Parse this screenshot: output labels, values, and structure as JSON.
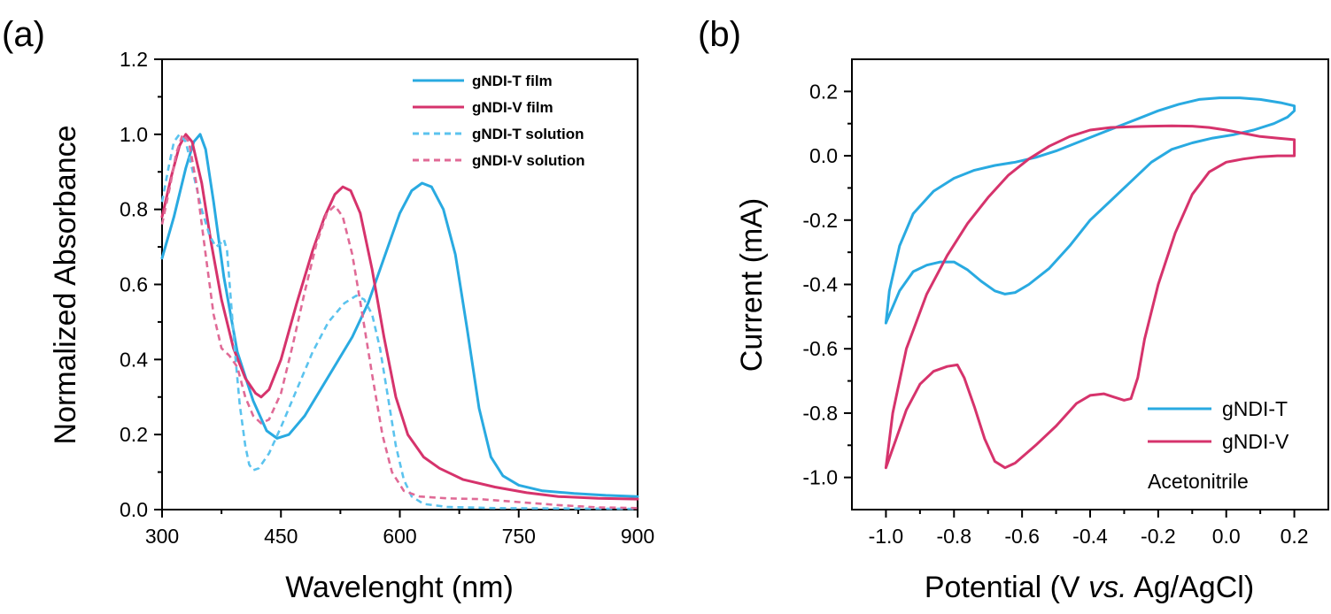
{
  "colors": {
    "blue": "#29aae1",
    "pink": "#d6336c",
    "blue_dashed": "#5bc3ee",
    "pink_dashed": "#e06a96"
  },
  "chart_data": [
    {
      "panel": "(a)",
      "type": "line",
      "xlabel": "Wavelenght (nm)",
      "ylabel": "Normalized Absorbance",
      "xlim": [
        300,
        900
      ],
      "ylim": [
        0,
        1.2
      ],
      "xticks": [
        300,
        450,
        600,
        750,
        900
      ],
      "yticks": [
        0.0,
        0.2,
        0.4,
        0.6,
        0.8,
        1.0,
        1.2
      ],
      "ytick_labels": [
        "0.0",
        "0.2",
        "0.4",
        "0.6",
        "0.8",
        "1.0",
        "1.2"
      ],
      "legend_position": "top-right",
      "series": [
        {
          "name": "gNDI-T film",
          "color": "#29aae1",
          "style": "solid",
          "points": [
            [
              300,
              0.67
            ],
            [
              315,
              0.78
            ],
            [
              330,
              0.91
            ],
            [
              340,
              0.98
            ],
            [
              348,
              1.0
            ],
            [
              355,
              0.96
            ],
            [
              365,
              0.82
            ],
            [
              378,
              0.62
            ],
            [
              395,
              0.42
            ],
            [
              415,
              0.29
            ],
            [
              432,
              0.21
            ],
            [
              445,
              0.19
            ],
            [
              460,
              0.2
            ],
            [
              480,
              0.25
            ],
            [
              500,
              0.32
            ],
            [
              520,
              0.39
            ],
            [
              540,
              0.46
            ],
            [
              560,
              0.55
            ],
            [
              580,
              0.67
            ],
            [
              600,
              0.79
            ],
            [
              615,
              0.85
            ],
            [
              628,
              0.87
            ],
            [
              640,
              0.86
            ],
            [
              655,
              0.8
            ],
            [
              670,
              0.68
            ],
            [
              685,
              0.48
            ],
            [
              700,
              0.27
            ],
            [
              715,
              0.14
            ],
            [
              730,
              0.09
            ],
            [
              750,
              0.065
            ],
            [
              780,
              0.05
            ],
            [
              820,
              0.043
            ],
            [
              860,
              0.038
            ],
            [
              900,
              0.035
            ]
          ]
        },
        {
          "name": "gNDI-V film",
          "color": "#d6336c",
          "style": "solid",
          "points": [
            [
              300,
              0.78
            ],
            [
              312,
              0.89
            ],
            [
              322,
              0.97
            ],
            [
              330,
              1.0
            ],
            [
              338,
              0.98
            ],
            [
              350,
              0.87
            ],
            [
              362,
              0.71
            ],
            [
              375,
              0.56
            ],
            [
              390,
              0.43
            ],
            [
              405,
              0.35
            ],
            [
              418,
              0.31
            ],
            [
              425,
              0.3
            ],
            [
              435,
              0.32
            ],
            [
              450,
              0.4
            ],
            [
              470,
              0.55
            ],
            [
              490,
              0.69
            ],
            [
              505,
              0.78
            ],
            [
              518,
              0.84
            ],
            [
              528,
              0.86
            ],
            [
              538,
              0.85
            ],
            [
              550,
              0.79
            ],
            [
              565,
              0.64
            ],
            [
              580,
              0.46
            ],
            [
              595,
              0.3
            ],
            [
              610,
              0.2
            ],
            [
              630,
              0.14
            ],
            [
              650,
              0.11
            ],
            [
              680,
              0.08
            ],
            [
              720,
              0.06
            ],
            [
              760,
              0.045
            ],
            [
              800,
              0.035
            ],
            [
              850,
              0.03
            ],
            [
              900,
              0.028
            ]
          ]
        },
        {
          "name": "gNDI-T solution",
          "color": "#5bc3ee",
          "style": "dashed",
          "points": [
            [
              300,
              0.82
            ],
            [
              308,
              0.91
            ],
            [
              315,
              0.98
            ],
            [
              322,
              1.0
            ],
            [
              330,
              0.98
            ],
            [
              340,
              0.89
            ],
            [
              350,
              0.8
            ],
            [
              360,
              0.73
            ],
            [
              368,
              0.7
            ],
            [
              374,
              0.71
            ],
            [
              378,
              0.72
            ],
            [
              382,
              0.69
            ],
            [
              386,
              0.58
            ],
            [
              392,
              0.42
            ],
            [
              398,
              0.28
            ],
            [
              405,
              0.17
            ],
            [
              410,
              0.12
            ],
            [
              415,
              0.105
            ],
            [
              422,
              0.11
            ],
            [
              435,
              0.15
            ],
            [
              450,
              0.22
            ],
            [
              470,
              0.32
            ],
            [
              490,
              0.42
            ],
            [
              510,
              0.5
            ],
            [
              530,
              0.55
            ],
            [
              545,
              0.57
            ],
            [
              555,
              0.56
            ],
            [
              565,
              0.52
            ],
            [
              575,
              0.43
            ],
            [
              585,
              0.3
            ],
            [
              595,
              0.17
            ],
            [
              605,
              0.08
            ],
            [
              615,
              0.035
            ],
            [
              630,
              0.015
            ],
            [
              660,
              0.007
            ],
            [
              720,
              0.004
            ],
            [
              900,
              0.002
            ]
          ]
        },
        {
          "name": "gNDI-V solution",
          "color": "#e06a96",
          "style": "dashed",
          "points": [
            [
              300,
              0.76
            ],
            [
              310,
              0.86
            ],
            [
              318,
              0.95
            ],
            [
              326,
              1.0
            ],
            [
              334,
              0.98
            ],
            [
              344,
              0.86
            ],
            [
              355,
              0.68
            ],
            [
              365,
              0.52
            ],
            [
              375,
              0.43
            ],
            [
              385,
              0.41
            ],
            [
              395,
              0.38
            ],
            [
              405,
              0.3
            ],
            [
              415,
              0.25
            ],
            [
              425,
              0.23
            ],
            [
              435,
              0.24
            ],
            [
              450,
              0.31
            ],
            [
              465,
              0.44
            ],
            [
              480,
              0.58
            ],
            [
              495,
              0.71
            ],
            [
              508,
              0.79
            ],
            [
              518,
              0.81
            ],
            [
              528,
              0.78
            ],
            [
              540,
              0.68
            ],
            [
              552,
              0.53
            ],
            [
              565,
              0.36
            ],
            [
              578,
              0.2
            ],
            [
              590,
              0.1
            ],
            [
              605,
              0.05
            ],
            [
              625,
              0.035
            ],
            [
              660,
              0.03
            ],
            [
              700,
              0.028
            ],
            [
              750,
              0.02
            ],
            [
              800,
              0.012
            ],
            [
              850,
              0.006
            ],
            [
              900,
              0.004
            ]
          ]
        }
      ]
    },
    {
      "panel": "(b)",
      "type": "line",
      "xlabel_parts": [
        "Potential (V ",
        "vs.",
        " Ag/AgCl)"
      ],
      "ylabel": "Current (mA)",
      "xlim": [
        -1.1,
        0.3
      ],
      "ylim": [
        -1.1,
        0.3
      ],
      "xticks": [
        -1.0,
        -0.8,
        -0.6,
        -0.4,
        -0.2,
        0.0,
        0.2
      ],
      "xtick_labels": [
        "-1.0",
        "-0.8",
        "-0.6",
        "-0.4",
        "-0.2",
        "0.0",
        "0.2"
      ],
      "yticks": [
        -1.0,
        -0.8,
        -0.6,
        -0.4,
        -0.2,
        0.0,
        0.2
      ],
      "ytick_labels": [
        "-1.0",
        "-0.8",
        "-0.6",
        "-0.4",
        "-0.2",
        "0.0",
        "0.2"
      ],
      "legend_position": "bottom-right",
      "annotation": "Acetonitrile",
      "series": [
        {
          "name": "gNDI-T",
          "color": "#29aae1",
          "style": "solid",
          "points": [
            [
              -1.0,
              -0.52
            ],
            [
              -0.96,
              -0.42
            ],
            [
              -0.92,
              -0.36
            ],
            [
              -0.88,
              -0.34
            ],
            [
              -0.84,
              -0.33
            ],
            [
              -0.8,
              -0.33
            ],
            [
              -0.76,
              -0.355
            ],
            [
              -0.72,
              -0.39
            ],
            [
              -0.68,
              -0.42
            ],
            [
              -0.65,
              -0.43
            ],
            [
              -0.62,
              -0.425
            ],
            [
              -0.58,
              -0.4
            ],
            [
              -0.52,
              -0.35
            ],
            [
              -0.46,
              -0.28
            ],
            [
              -0.4,
              -0.2
            ],
            [
              -0.34,
              -0.14
            ],
            [
              -0.28,
              -0.08
            ],
            [
              -0.22,
              -0.02
            ],
            [
              -0.16,
              0.02
            ],
            [
              -0.1,
              0.04
            ],
            [
              -0.04,
              0.055
            ],
            [
              0.02,
              0.065
            ],
            [
              0.08,
              0.08
            ],
            [
              0.14,
              0.1
            ],
            [
              0.18,
              0.12
            ],
            [
              0.2,
              0.14
            ],
            [
              0.2,
              0.155
            ],
            [
              0.16,
              0.165
            ],
            [
              0.1,
              0.175
            ],
            [
              0.04,
              0.18
            ],
            [
              -0.02,
              0.18
            ],
            [
              -0.08,
              0.175
            ],
            [
              -0.14,
              0.16
            ],
            [
              -0.2,
              0.14
            ],
            [
              -0.26,
              0.115
            ],
            [
              -0.32,
              0.09
            ],
            [
              -0.38,
              0.065
            ],
            [
              -0.44,
              0.04
            ],
            [
              -0.5,
              0.015
            ],
            [
              -0.56,
              -0.005
            ],
            [
              -0.62,
              -0.02
            ],
            [
              -0.68,
              -0.03
            ],
            [
              -0.74,
              -0.045
            ],
            [
              -0.8,
              -0.07
            ],
            [
              -0.86,
              -0.11
            ],
            [
              -0.92,
              -0.18
            ],
            [
              -0.96,
              -0.28
            ],
            [
              -0.99,
              -0.42
            ],
            [
              -1.0,
              -0.52
            ]
          ]
        },
        {
          "name": "gNDI-V",
          "color": "#d6336c",
          "style": "solid",
          "points": [
            [
              -1.0,
              -0.97
            ],
            [
              -0.97,
              -0.88
            ],
            [
              -0.94,
              -0.79
            ],
            [
              -0.9,
              -0.71
            ],
            [
              -0.86,
              -0.67
            ],
            [
              -0.82,
              -0.655
            ],
            [
              -0.79,
              -0.65
            ],
            [
              -0.77,
              -0.69
            ],
            [
              -0.74,
              -0.78
            ],
            [
              -0.71,
              -0.88
            ],
            [
              -0.68,
              -0.95
            ],
            [
              -0.65,
              -0.97
            ],
            [
              -0.62,
              -0.955
            ],
            [
              -0.56,
              -0.9
            ],
            [
              -0.5,
              -0.84
            ],
            [
              -0.44,
              -0.77
            ],
            [
              -0.4,
              -0.745
            ],
            [
              -0.36,
              -0.74
            ],
            [
              -0.33,
              -0.75
            ],
            [
              -0.3,
              -0.76
            ],
            [
              -0.28,
              -0.755
            ],
            [
              -0.26,
              -0.69
            ],
            [
              -0.24,
              -0.57
            ],
            [
              -0.2,
              -0.4
            ],
            [
              -0.15,
              -0.24
            ],
            [
              -0.1,
              -0.12
            ],
            [
              -0.05,
              -0.05
            ],
            [
              0.0,
              -0.02
            ],
            [
              0.05,
              -0.01
            ],
            [
              0.1,
              -0.003
            ],
            [
              0.15,
              0.0
            ],
            [
              0.2,
              0.0
            ],
            [
              0.2,
              0.05
            ],
            [
              0.15,
              0.055
            ],
            [
              0.1,
              0.06
            ],
            [
              0.05,
              0.07
            ],
            [
              0.0,
              0.08
            ],
            [
              -0.05,
              0.088
            ],
            [
              -0.1,
              0.092
            ],
            [
              -0.16,
              0.093
            ],
            [
              -0.22,
              0.092
            ],
            [
              -0.28,
              0.09
            ],
            [
              -0.34,
              0.088
            ],
            [
              -0.4,
              0.08
            ],
            [
              -0.46,
              0.06
            ],
            [
              -0.52,
              0.03
            ],
            [
              -0.58,
              -0.01
            ],
            [
              -0.64,
              -0.06
            ],
            [
              -0.7,
              -0.13
            ],
            [
              -0.76,
              -0.21
            ],
            [
              -0.82,
              -0.31
            ],
            [
              -0.88,
              -0.43
            ],
            [
              -0.94,
              -0.6
            ],
            [
              -0.98,
              -0.8
            ],
            [
              -1.0,
              -0.97
            ]
          ]
        }
      ]
    }
  ]
}
